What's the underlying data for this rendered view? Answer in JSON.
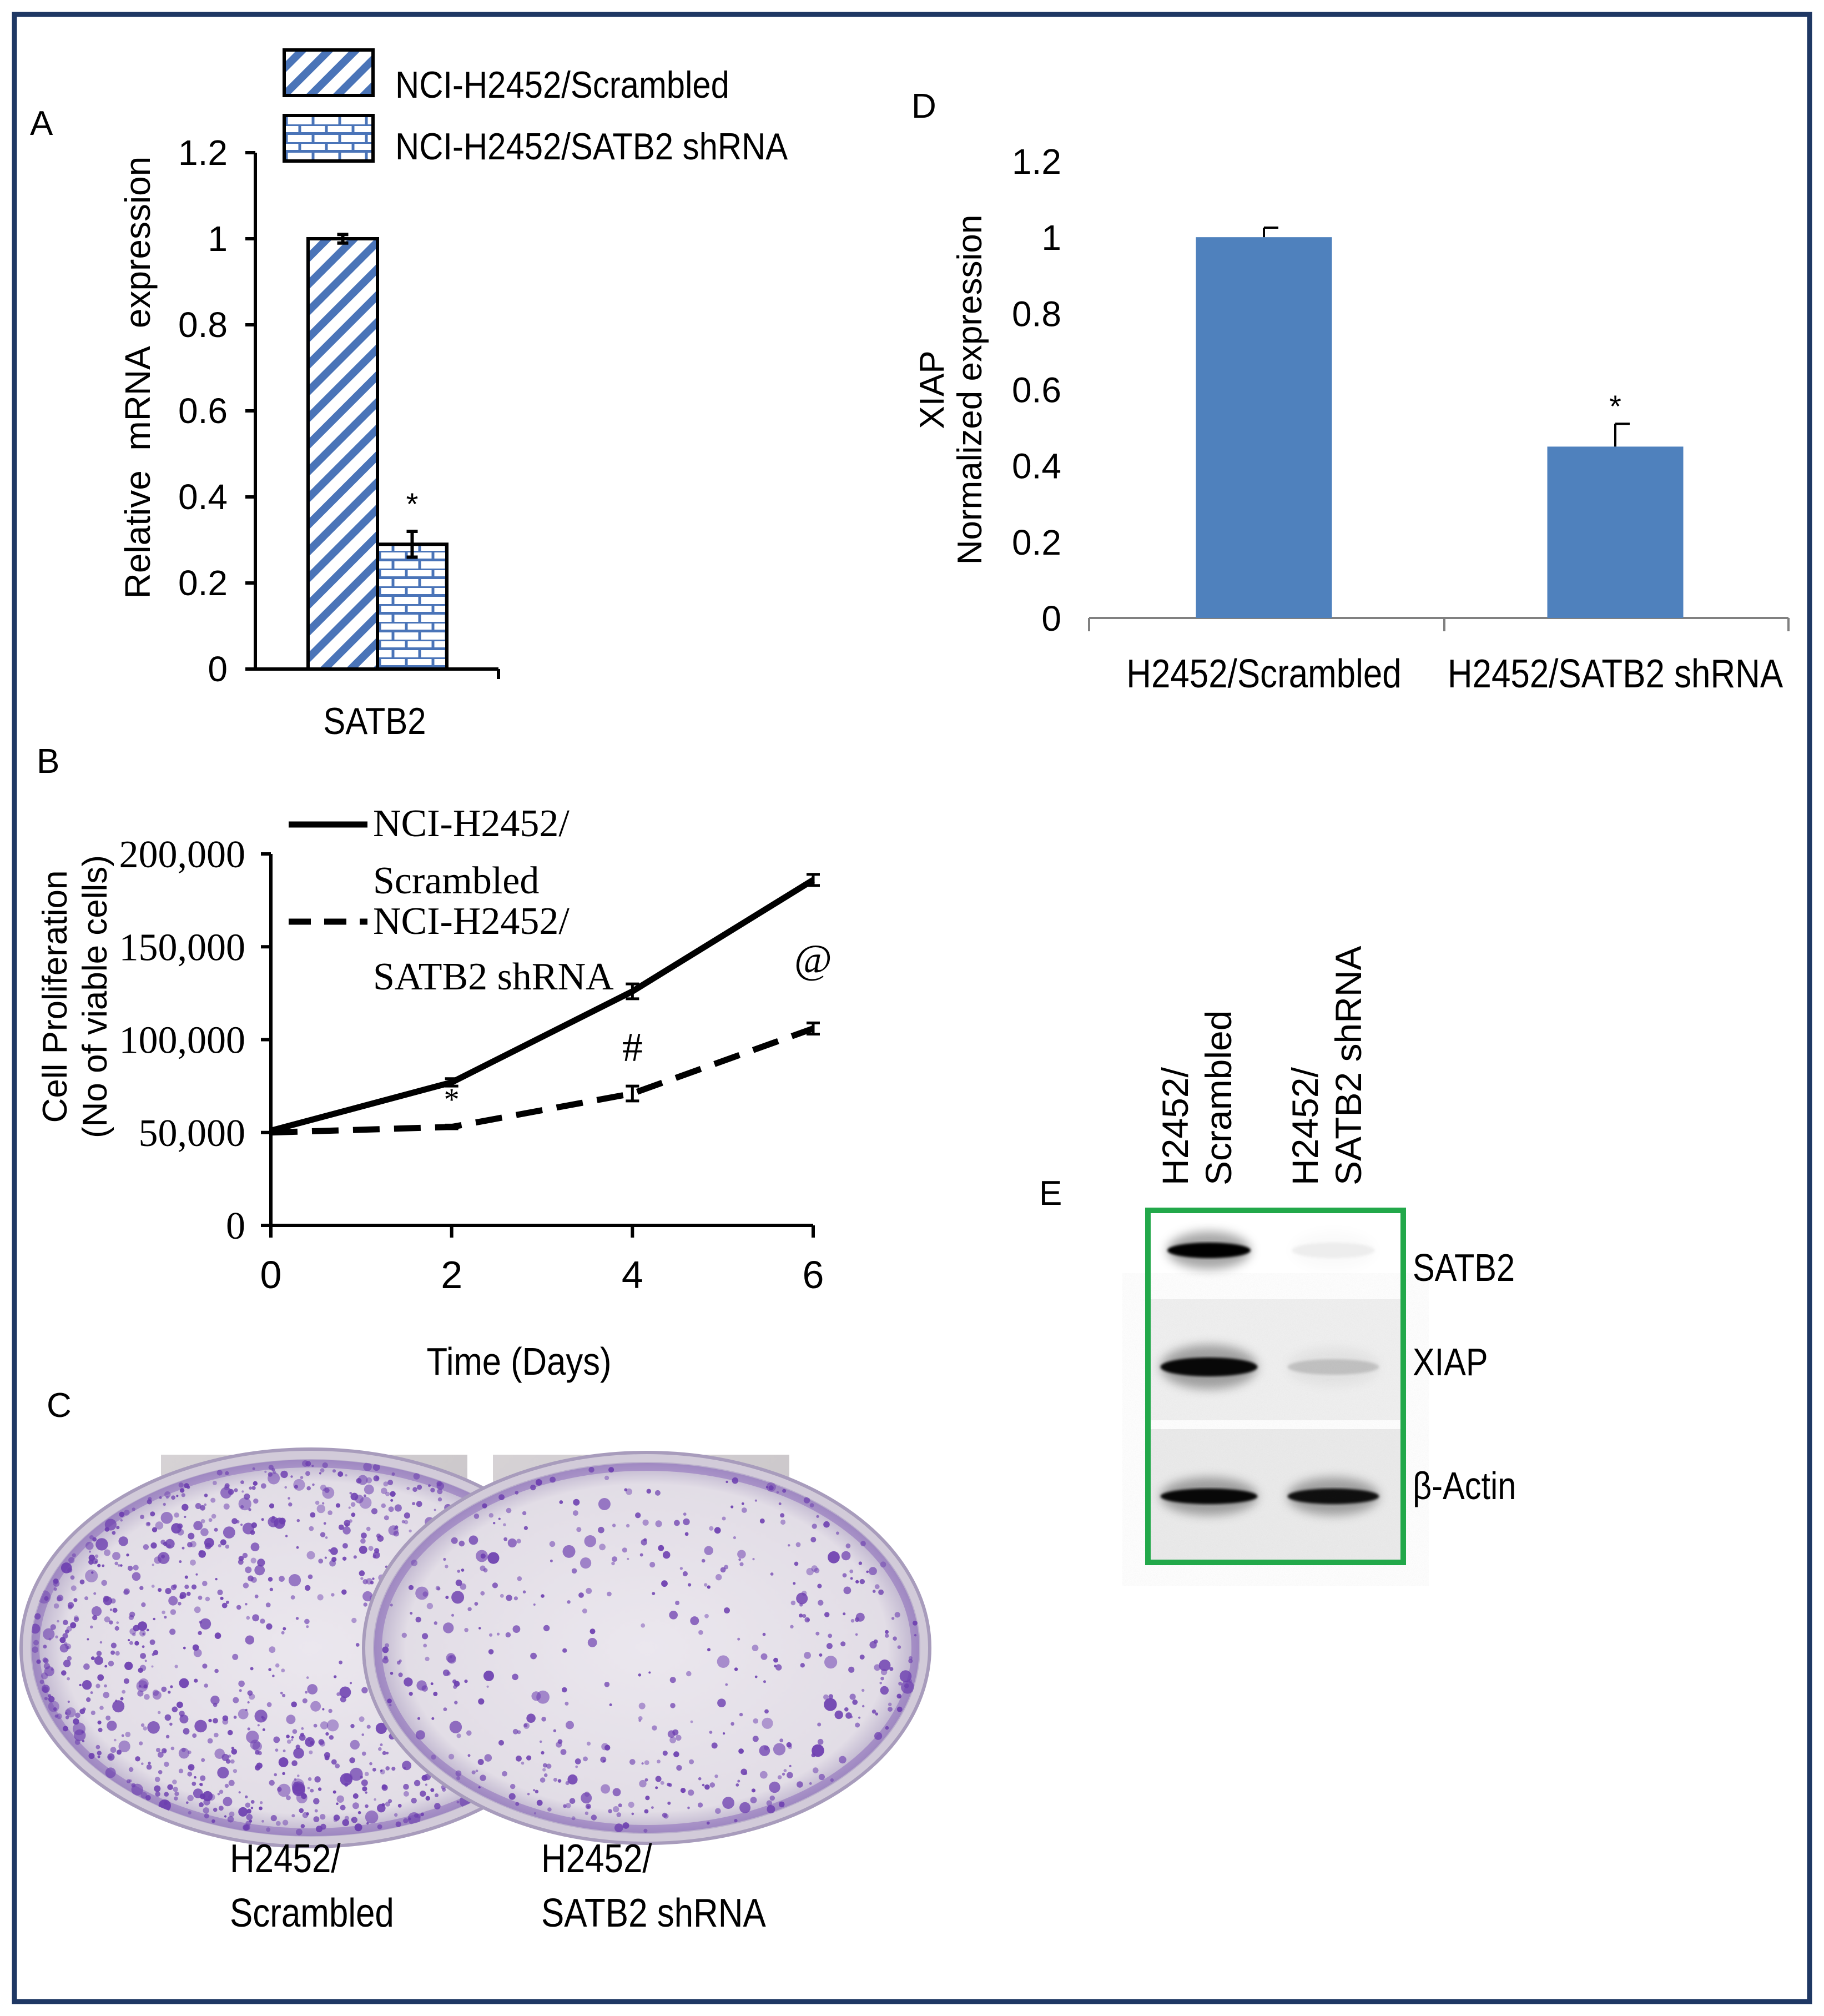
{
  "colors": {
    "frame": "#1f3864",
    "bar_fill": "#4f81bd",
    "blot_border": "#22a84a",
    "axis": "#000000",
    "hatch": "#4a74b8",
    "crystal_violet": "#6d3fb0",
    "plate_background": "#cdc9cc"
  },
  "panels": {
    "A": "A",
    "B": "B",
    "C": "C",
    "D": "D",
    "E": "E"
  },
  "chart_data": [
    {
      "panel": "A",
      "type": "bar",
      "categories": [
        "SATB2"
      ],
      "series": [
        {
          "name": "NCI-H2452/Scrambled",
          "values": [
            1.0
          ],
          "error": [
            0.01
          ],
          "pattern": "diagonal-hatch"
        },
        {
          "name": "NCI-H2452/SATB2 shRNA",
          "values": [
            0.29
          ],
          "error": [
            0.03
          ],
          "pattern": "brick",
          "annotation": "*"
        }
      ],
      "ylabel": "Relative  mRNA  expression",
      "ylim": [
        0,
        1.2
      ],
      "yticks": [
        0,
        0.2,
        0.4,
        0.6,
        0.8,
        1.0,
        1.2
      ],
      "ytick_labels": [
        "0",
        "0.2",
        "0.4",
        "0.6",
        "0.8",
        "1",
        "1.2"
      ],
      "xlabel": "",
      "legend": "top-left",
      "grid": false
    },
    {
      "panel": "B",
      "type": "line",
      "x": [
        0,
        2,
        4,
        6
      ],
      "series": [
        {
          "name_lines": [
            "NCI-H2452/",
            "Scrambled"
          ],
          "values": [
            51000,
            77000,
            126000,
            186000
          ],
          "error": [
            1000,
            2000,
            4000,
            3000
          ],
          "style": "solid"
        },
        {
          "name_lines": [
            "NCI-H2452/",
            "SATB2 shRNA"
          ],
          "values": [
            50000,
            53000,
            71000,
            106000
          ],
          "error": [
            1000,
            1000,
            4000,
            3000
          ],
          "style": "dashed",
          "annotations": [
            "",
            "*",
            "#",
            "@"
          ]
        }
      ],
      "ylabel_lines": [
        "Cell Proliferation",
        "(No of viable cells)"
      ],
      "xlabel": "Time (Days)",
      "xlim": [
        0,
        6
      ],
      "xticks": [
        "0",
        "2",
        "4",
        "6"
      ],
      "ylim": [
        0,
        200000
      ],
      "yticks": [
        "0",
        "50,000",
        "100,000",
        "150,000",
        "200,000"
      ],
      "legend": "top-left",
      "grid": false
    },
    {
      "panel": "D",
      "type": "bar",
      "categories": [
        "H2452/Scrambled",
        "H2452/SATB2 shRNA"
      ],
      "values": [
        1.0,
        0.45
      ],
      "error": [
        0.025,
        0.06
      ],
      "annotations": [
        "",
        "*"
      ],
      "ylabel_lines": [
        "XIAP",
        "Normalized expression"
      ],
      "ylim": [
        0,
        1.2
      ],
      "yticks": [
        0,
        0.2,
        0.4,
        0.6,
        0.8,
        1.0,
        1.2
      ],
      "ytick_labels": [
        "0",
        "0.2",
        "0.4",
        "0.6",
        "0.8",
        "1",
        "1.2"
      ],
      "grid": false
    }
  ],
  "colony_assay": {
    "plates": [
      {
        "label_lines": [
          "H2452/",
          "Scrambled"
        ],
        "colony_density": 0.85
      },
      {
        "label_lines": [
          "H2452/",
          "SATB2 shRNA"
        ],
        "colony_density": 0.35
      }
    ]
  },
  "western_blot": {
    "lanes": [
      {
        "label_lines": [
          "H2452/",
          "Scrambled"
        ]
      },
      {
        "label_lines": [
          "H2452/",
          "SATB2 shRNA"
        ]
      }
    ],
    "bands": [
      {
        "label": "SATB2",
        "intensity": [
          1.0,
          0.05
        ]
      },
      {
        "label": "XIAP",
        "intensity": [
          0.95,
          0.15
        ]
      },
      {
        "label": "β-Actin",
        "intensity": [
          0.95,
          0.9
        ]
      }
    ]
  }
}
